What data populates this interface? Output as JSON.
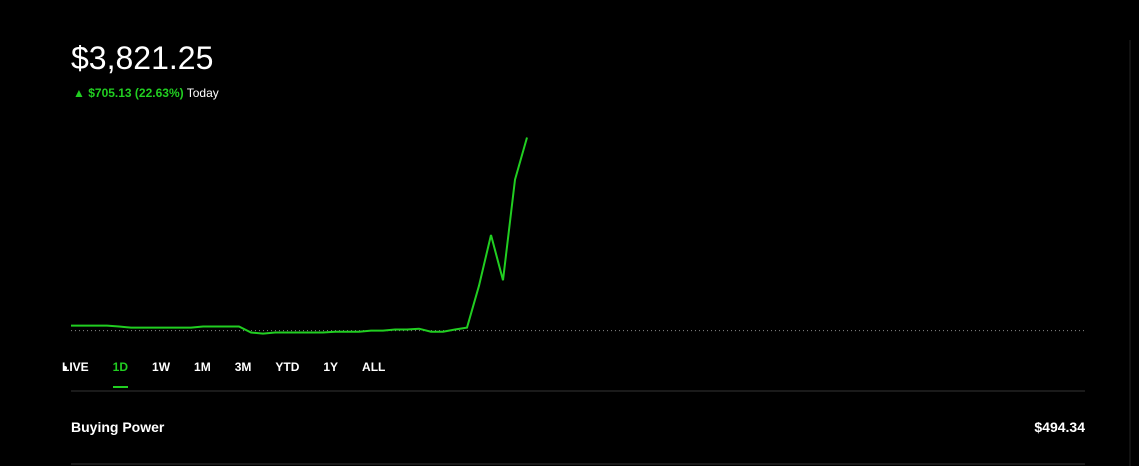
{
  "header": {
    "value": "$3,821.25",
    "change": "$705.13 (22.63%)",
    "period": "Today"
  },
  "chart_data": {
    "type": "line",
    "color": "#21ce21",
    "ylim": [
      3100,
      3830
    ],
    "reference_line": 3116.12,
    "values": [
      3134,
      3134,
      3134,
      3134,
      3131,
      3127,
      3127,
      3127,
      3127,
      3127,
      3127,
      3131,
      3131,
      3131,
      3131,
      3109,
      3105,
      3109,
      3109,
      3109,
      3109,
      3109,
      3112,
      3112,
      3112,
      3116,
      3116,
      3120,
      3120,
      3123,
      3112,
      3112,
      3120,
      3127,
      3280,
      3465,
      3300,
      3667,
      3821
    ]
  },
  "tabs": {
    "items": [
      "LIVE",
      "1D",
      "1W",
      "1M",
      "3M",
      "YTD",
      "1Y",
      "ALL"
    ],
    "active": 1
  },
  "buying_power": {
    "label": "Buying Power",
    "value": "$494.34"
  }
}
